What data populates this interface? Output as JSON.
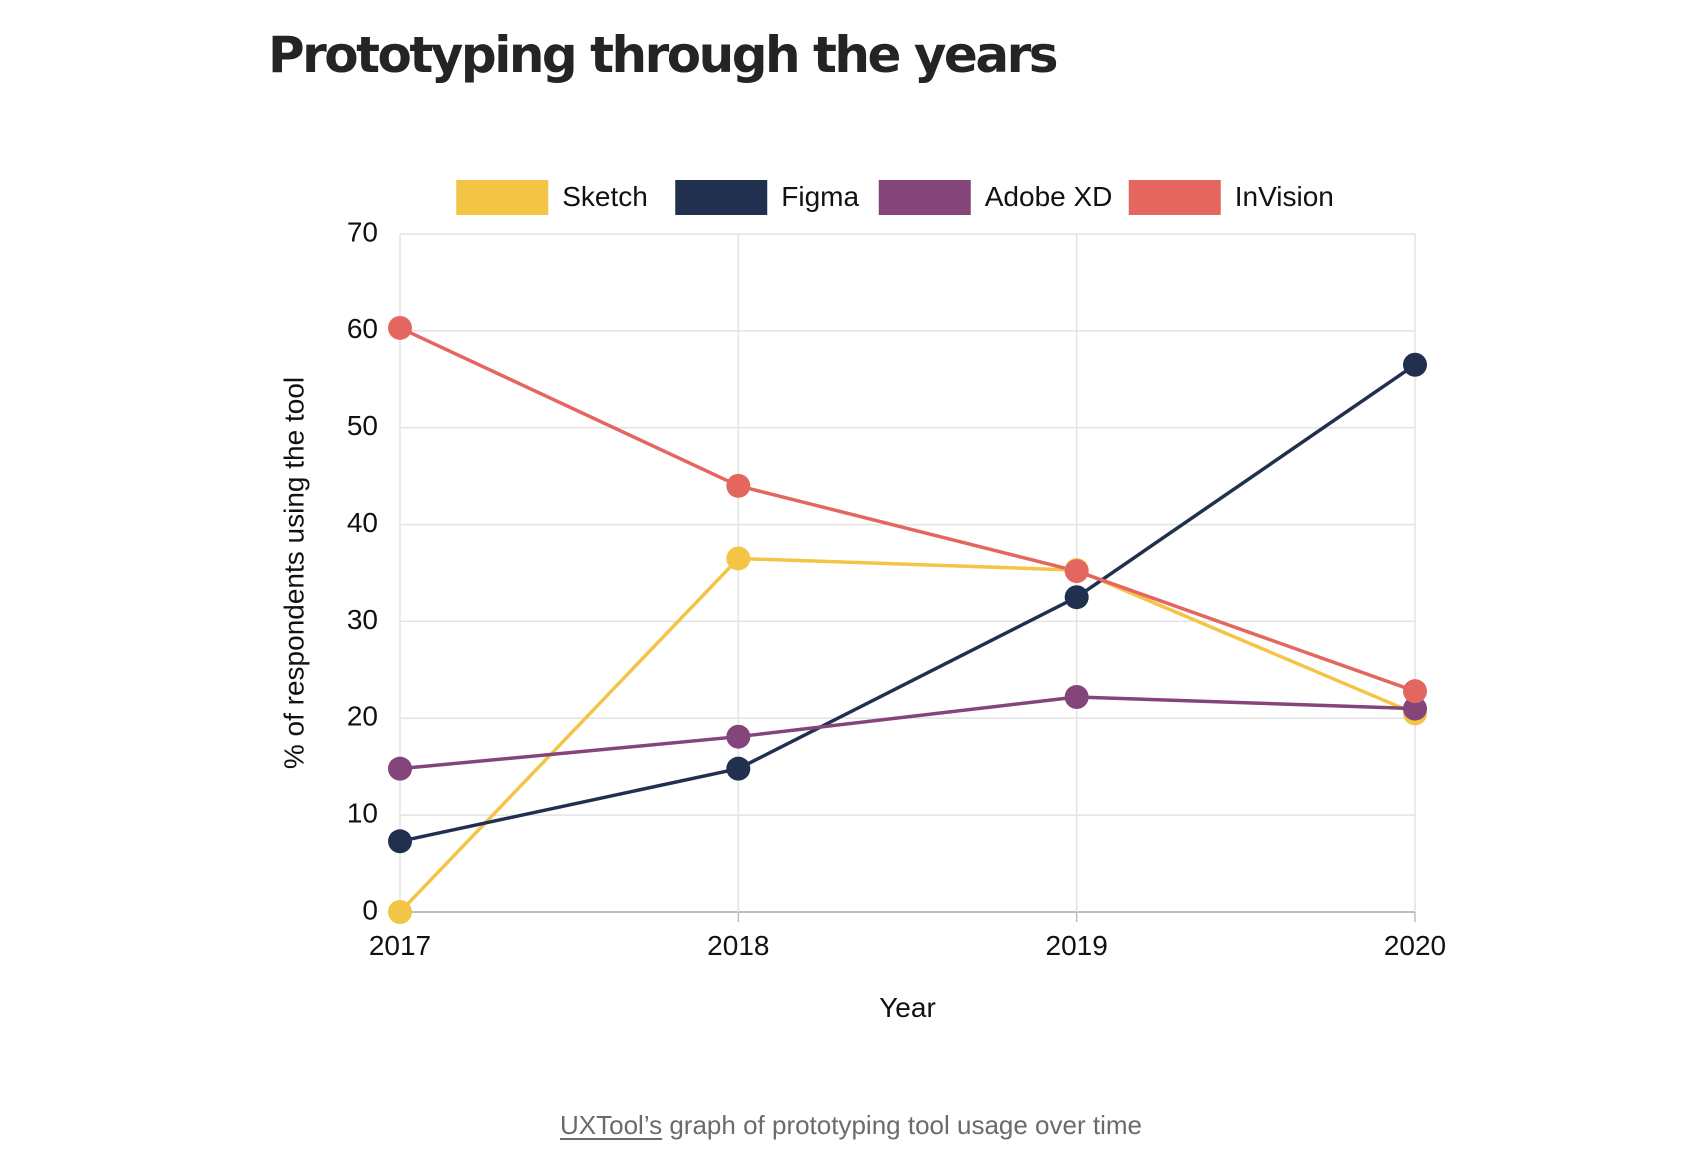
{
  "article": {
    "heading": "Prototyping through the years",
    "caption": {
      "link_text": "UXTool’s",
      "text": " graph of prototyping tool usage over time"
    }
  },
  "chart_data": {
    "type": "line",
    "title": "",
    "xlabel": "Year",
    "ylabel": "% of respondents using the tool",
    "categories": [
      "2017",
      "2018",
      "2019",
      "2020"
    ],
    "ylim": [
      0,
      70
    ],
    "yticks": [
      0,
      10,
      20,
      30,
      40,
      50,
      60,
      70
    ],
    "grid": true,
    "legend_position": "top",
    "series": [
      {
        "name": "Sketch",
        "color": "#F3C446",
        "values": [
          0,
          36.5,
          35.3,
          20.5
        ]
      },
      {
        "name": "Figma",
        "color": "#21304F",
        "values": [
          7.3,
          14.8,
          32.5,
          56.5
        ]
      },
      {
        "name": "Adobe XD",
        "color": "#83457A",
        "values": [
          14.8,
          18.1,
          22.2,
          21.0
        ]
      },
      {
        "name": "InVision",
        "color": "#E3675F",
        "values": [
          60.3,
          44.0,
          35.2,
          22.8
        ]
      }
    ]
  }
}
